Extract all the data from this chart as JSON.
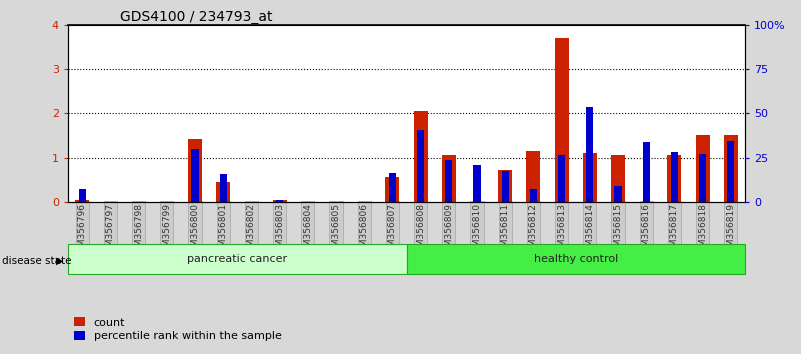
{
  "title": "GDS4100 / 234793_at",
  "samples": [
    "GSM356796",
    "GSM356797",
    "GSM356798",
    "GSM356799",
    "GSM356800",
    "GSM356801",
    "GSM356802",
    "GSM356803",
    "GSM356804",
    "GSM356805",
    "GSM356806",
    "GSM356807",
    "GSM356808",
    "GSM356809",
    "GSM356810",
    "GSM356811",
    "GSM356812",
    "GSM356813",
    "GSM356814",
    "GSM356815",
    "GSM356816",
    "GSM356817",
    "GSM356818",
    "GSM356819"
  ],
  "count_values": [
    0.05,
    0.0,
    0.0,
    0.0,
    1.42,
    0.45,
    0.0,
    0.05,
    0.0,
    0.0,
    0.0,
    0.55,
    2.05,
    1.05,
    0.0,
    0.72,
    1.15,
    3.7,
    1.1,
    1.05,
    0.0,
    1.05,
    1.5,
    1.5
  ],
  "percentile_values": [
    0.28,
    0.0,
    0.0,
    0.0,
    1.2,
    0.62,
    0.0,
    0.05,
    0.0,
    0.0,
    0.0,
    0.65,
    1.62,
    0.95,
    0.82,
    0.7,
    0.3,
    1.05,
    2.15,
    0.35,
    1.35,
    1.12,
    1.08,
    1.38
  ],
  "bar_color_count": "#CC2200",
  "bar_color_percentile": "#0000CC",
  "ylim_left": [
    0,
    4
  ],
  "ylim_right": [
    0,
    100
  ],
  "yticks_left": [
    0,
    1,
    2,
    3,
    4
  ],
  "yticks_right": [
    0,
    25,
    50,
    75,
    100
  ],
  "ytick_labels_right": [
    "0",
    "25",
    "50",
    "75",
    "100%"
  ],
  "bg_color": "#d8d8d8",
  "plot_bg": "#ffffff",
  "pc_color": "#ccffcc",
  "hc_color": "#44ee44",
  "box_edge": "#22aa22",
  "n_pc": 12,
  "n_hc": 12,
  "title_fontsize": 10,
  "tick_fontsize": 6.5,
  "ytick_fontsize": 8
}
